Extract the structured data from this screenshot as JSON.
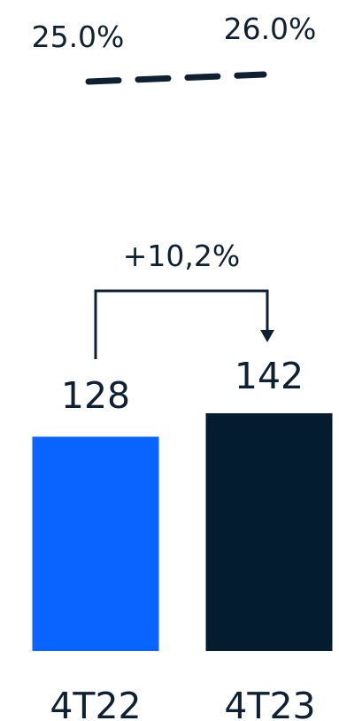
{
  "chart_data": {
    "type": "bar",
    "categories": [
      "4T22",
      "4T23"
    ],
    "values": [
      128,
      142
    ],
    "value_labels": [
      "128",
      "142"
    ],
    "bar_colors": [
      "#0a64ff",
      "#031c30"
    ],
    "ylim": [
      0,
      142
    ],
    "overlay_line": {
      "style": "dashed",
      "values": [
        25.0,
        26.0
      ],
      "labels": [
        "25.0%",
        "26.0%"
      ],
      "color": "#0f2033"
    },
    "growth_annotation": {
      "label": "+10,2%",
      "from": "4T22",
      "to": "4T23"
    },
    "title": "",
    "xlabel": "",
    "ylabel": ""
  }
}
